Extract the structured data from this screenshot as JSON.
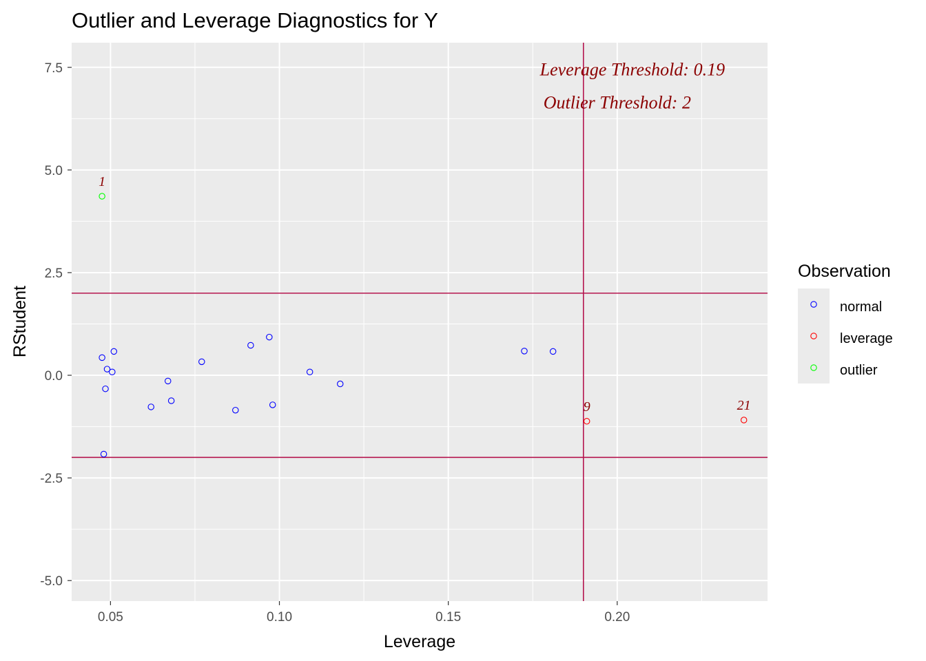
{
  "chart_data": {
    "type": "scatter",
    "title": "Outlier and Leverage Diagnostics for Y",
    "xlabel": "Leverage",
    "ylabel": "RStudent",
    "xlim": [
      0.0385,
      0.2445
    ],
    "ylim": [
      -5.5,
      8.1
    ],
    "x_ticks": [
      0.05,
      0.1,
      0.15,
      0.2
    ],
    "x_tick_labels": [
      "0.05",
      "0.10",
      "0.15",
      "0.20"
    ],
    "y_ticks": [
      7.5,
      5.0,
      2.5,
      0.0,
      -2.5,
      -5.0
    ],
    "y_tick_labels": [
      "7.5",
      "5.0",
      "2.5",
      "0.0",
      "-2.5",
      "-5.0"
    ],
    "grid": true,
    "legend": {
      "title": "Observation",
      "position": "right",
      "entries": [
        {
          "label": "normal",
          "color": "#0000ff"
        },
        {
          "label": "leverage",
          "color": "#ff0000"
        },
        {
          "label": "outlier",
          "color": "#00ff00"
        }
      ]
    },
    "thresholds": {
      "leverage": 0.19,
      "outlier_upper": 2,
      "outlier_lower": -2,
      "line_color": "#b5144e"
    },
    "annotations": [
      {
        "text": "Leverage Threshold: 0.19",
        "x": 0.2045,
        "y": 7.3,
        "color": "#8b0000"
      },
      {
        "text": "Outlier Threshold: 2",
        "x": 0.2,
        "y": 6.5,
        "color": "#8b0000"
      }
    ],
    "series": [
      {
        "name": "normal",
        "color": "#0000ff",
        "points": [
          {
            "x": 0.0475,
            "y": 0.43
          },
          {
            "x": 0.049,
            "y": 0.15
          },
          {
            "x": 0.0485,
            "y": -0.33
          },
          {
            "x": 0.051,
            "y": 0.58
          },
          {
            "x": 0.0505,
            "y": 0.08
          },
          {
            "x": 0.048,
            "y": -1.92
          },
          {
            "x": 0.062,
            "y": -0.77
          },
          {
            "x": 0.067,
            "y": -0.14
          },
          {
            "x": 0.068,
            "y": -0.62
          },
          {
            "x": 0.077,
            "y": 0.33
          },
          {
            "x": 0.087,
            "y": -0.85
          },
          {
            "x": 0.0915,
            "y": 0.73
          },
          {
            "x": 0.097,
            "y": 0.93
          },
          {
            "x": 0.098,
            "y": -0.72
          },
          {
            "x": 0.109,
            "y": 0.08
          },
          {
            "x": 0.118,
            "y": -0.21
          },
          {
            "x": 0.1725,
            "y": 0.59
          },
          {
            "x": 0.181,
            "y": 0.58
          }
        ]
      },
      {
        "name": "leverage",
        "color": "#ff0000",
        "points": [
          {
            "x": 0.191,
            "y": -1.12,
            "label": "9"
          },
          {
            "x": 0.2375,
            "y": -1.09,
            "label": "21"
          }
        ]
      },
      {
        "name": "outlier",
        "color": "#00ff00",
        "points": [
          {
            "x": 0.0475,
            "y": 4.36,
            "label": "1"
          }
        ]
      }
    ],
    "point_label_color": "#8b0000"
  }
}
